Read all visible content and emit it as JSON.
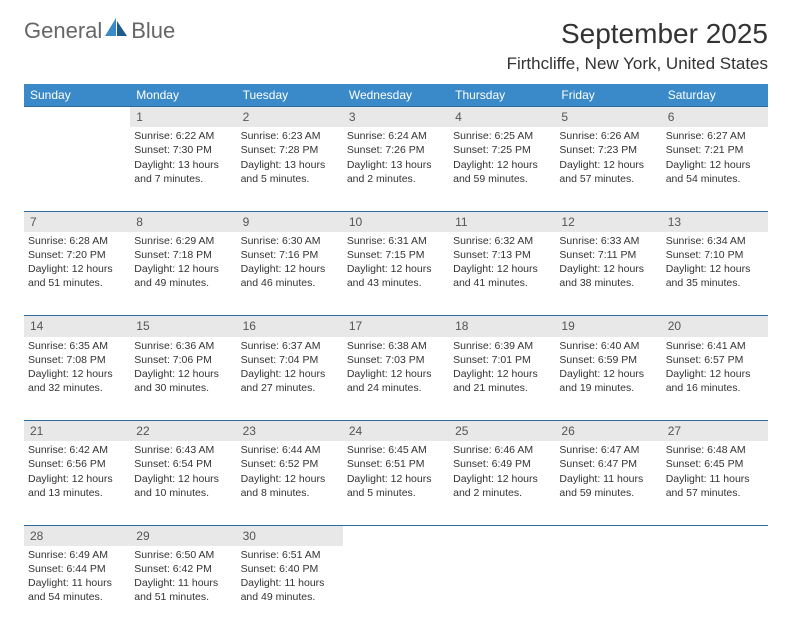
{
  "logo": {
    "word1": "General",
    "word2": "Blue"
  },
  "title": "September 2025",
  "location": "Firthcliffe, New York, United States",
  "colors": {
    "header_bg": "#3a8ac9",
    "header_text": "#ffffff",
    "daynum_bg": "#e8e8e8",
    "rule": "#2a6a9c",
    "body_text": "#333333",
    "logo_gray": "#666666",
    "logo_blue": "#3a8ac9"
  },
  "days_of_week": [
    "Sunday",
    "Monday",
    "Tuesday",
    "Wednesday",
    "Thursday",
    "Friday",
    "Saturday"
  ],
  "weeks": [
    [
      null,
      {
        "n": "1",
        "sunrise": "Sunrise: 6:22 AM",
        "sunset": "Sunset: 7:30 PM",
        "daylight": "Daylight: 13 hours and 7 minutes."
      },
      {
        "n": "2",
        "sunrise": "Sunrise: 6:23 AM",
        "sunset": "Sunset: 7:28 PM",
        "daylight": "Daylight: 13 hours and 5 minutes."
      },
      {
        "n": "3",
        "sunrise": "Sunrise: 6:24 AM",
        "sunset": "Sunset: 7:26 PM",
        "daylight": "Daylight: 13 hours and 2 minutes."
      },
      {
        "n": "4",
        "sunrise": "Sunrise: 6:25 AM",
        "sunset": "Sunset: 7:25 PM",
        "daylight": "Daylight: 12 hours and 59 minutes."
      },
      {
        "n": "5",
        "sunrise": "Sunrise: 6:26 AM",
        "sunset": "Sunset: 7:23 PM",
        "daylight": "Daylight: 12 hours and 57 minutes."
      },
      {
        "n": "6",
        "sunrise": "Sunrise: 6:27 AM",
        "sunset": "Sunset: 7:21 PM",
        "daylight": "Daylight: 12 hours and 54 minutes."
      }
    ],
    [
      {
        "n": "7",
        "sunrise": "Sunrise: 6:28 AM",
        "sunset": "Sunset: 7:20 PM",
        "daylight": "Daylight: 12 hours and 51 minutes."
      },
      {
        "n": "8",
        "sunrise": "Sunrise: 6:29 AM",
        "sunset": "Sunset: 7:18 PM",
        "daylight": "Daylight: 12 hours and 49 minutes."
      },
      {
        "n": "9",
        "sunrise": "Sunrise: 6:30 AM",
        "sunset": "Sunset: 7:16 PM",
        "daylight": "Daylight: 12 hours and 46 minutes."
      },
      {
        "n": "10",
        "sunrise": "Sunrise: 6:31 AM",
        "sunset": "Sunset: 7:15 PM",
        "daylight": "Daylight: 12 hours and 43 minutes."
      },
      {
        "n": "11",
        "sunrise": "Sunrise: 6:32 AM",
        "sunset": "Sunset: 7:13 PM",
        "daylight": "Daylight: 12 hours and 41 minutes."
      },
      {
        "n": "12",
        "sunrise": "Sunrise: 6:33 AM",
        "sunset": "Sunset: 7:11 PM",
        "daylight": "Daylight: 12 hours and 38 minutes."
      },
      {
        "n": "13",
        "sunrise": "Sunrise: 6:34 AM",
        "sunset": "Sunset: 7:10 PM",
        "daylight": "Daylight: 12 hours and 35 minutes."
      }
    ],
    [
      {
        "n": "14",
        "sunrise": "Sunrise: 6:35 AM",
        "sunset": "Sunset: 7:08 PM",
        "daylight": "Daylight: 12 hours and 32 minutes."
      },
      {
        "n": "15",
        "sunrise": "Sunrise: 6:36 AM",
        "sunset": "Sunset: 7:06 PM",
        "daylight": "Daylight: 12 hours and 30 minutes."
      },
      {
        "n": "16",
        "sunrise": "Sunrise: 6:37 AM",
        "sunset": "Sunset: 7:04 PM",
        "daylight": "Daylight: 12 hours and 27 minutes."
      },
      {
        "n": "17",
        "sunrise": "Sunrise: 6:38 AM",
        "sunset": "Sunset: 7:03 PM",
        "daylight": "Daylight: 12 hours and 24 minutes."
      },
      {
        "n": "18",
        "sunrise": "Sunrise: 6:39 AM",
        "sunset": "Sunset: 7:01 PM",
        "daylight": "Daylight: 12 hours and 21 minutes."
      },
      {
        "n": "19",
        "sunrise": "Sunrise: 6:40 AM",
        "sunset": "Sunset: 6:59 PM",
        "daylight": "Daylight: 12 hours and 19 minutes."
      },
      {
        "n": "20",
        "sunrise": "Sunrise: 6:41 AM",
        "sunset": "Sunset: 6:57 PM",
        "daylight": "Daylight: 12 hours and 16 minutes."
      }
    ],
    [
      {
        "n": "21",
        "sunrise": "Sunrise: 6:42 AM",
        "sunset": "Sunset: 6:56 PM",
        "daylight": "Daylight: 12 hours and 13 minutes."
      },
      {
        "n": "22",
        "sunrise": "Sunrise: 6:43 AM",
        "sunset": "Sunset: 6:54 PM",
        "daylight": "Daylight: 12 hours and 10 minutes."
      },
      {
        "n": "23",
        "sunrise": "Sunrise: 6:44 AM",
        "sunset": "Sunset: 6:52 PM",
        "daylight": "Daylight: 12 hours and 8 minutes."
      },
      {
        "n": "24",
        "sunrise": "Sunrise: 6:45 AM",
        "sunset": "Sunset: 6:51 PM",
        "daylight": "Daylight: 12 hours and 5 minutes."
      },
      {
        "n": "25",
        "sunrise": "Sunrise: 6:46 AM",
        "sunset": "Sunset: 6:49 PM",
        "daylight": "Daylight: 12 hours and 2 minutes."
      },
      {
        "n": "26",
        "sunrise": "Sunrise: 6:47 AM",
        "sunset": "Sunset: 6:47 PM",
        "daylight": "Daylight: 11 hours and 59 minutes."
      },
      {
        "n": "27",
        "sunrise": "Sunrise: 6:48 AM",
        "sunset": "Sunset: 6:45 PM",
        "daylight": "Daylight: 11 hours and 57 minutes."
      }
    ],
    [
      {
        "n": "28",
        "sunrise": "Sunrise: 6:49 AM",
        "sunset": "Sunset: 6:44 PM",
        "daylight": "Daylight: 11 hours and 54 minutes."
      },
      {
        "n": "29",
        "sunrise": "Sunrise: 6:50 AM",
        "sunset": "Sunset: 6:42 PM",
        "daylight": "Daylight: 11 hours and 51 minutes."
      },
      {
        "n": "30",
        "sunrise": "Sunrise: 6:51 AM",
        "sunset": "Sunset: 6:40 PM",
        "daylight": "Daylight: 11 hours and 49 minutes."
      },
      null,
      null,
      null,
      null
    ]
  ]
}
